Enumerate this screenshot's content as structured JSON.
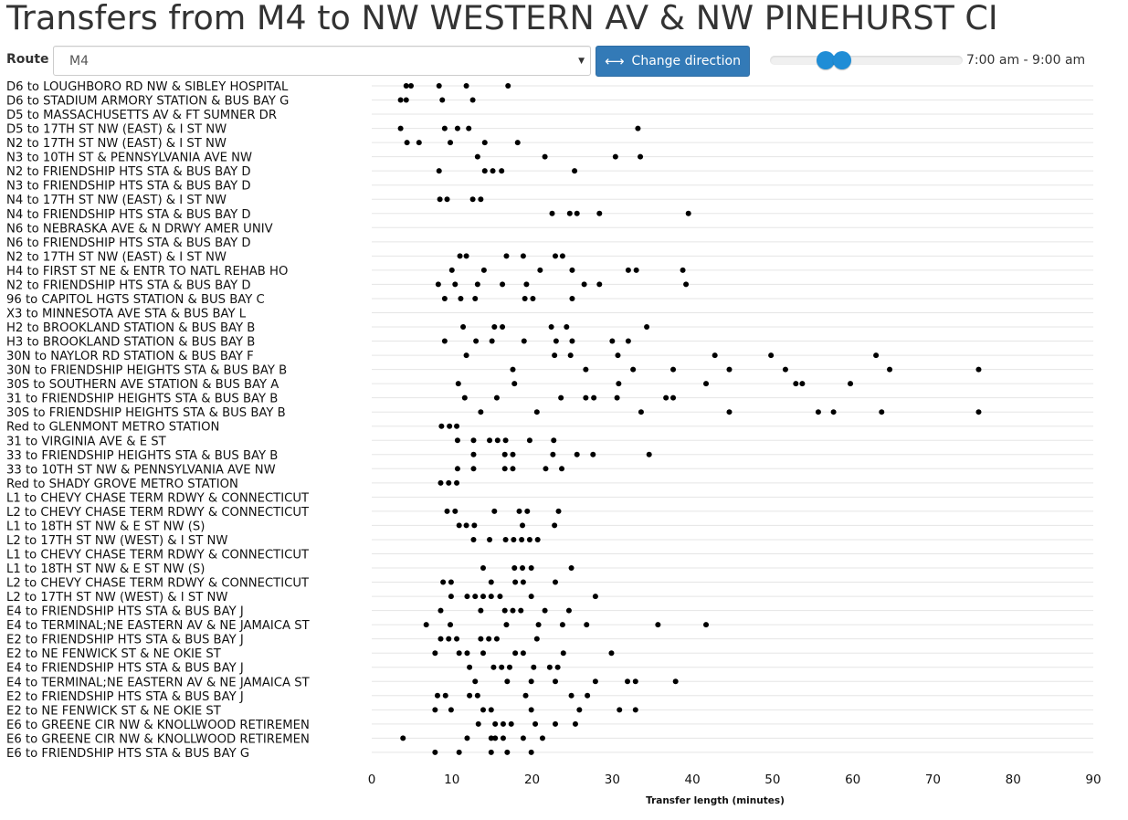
{
  "title": "Transfers from M4 to NW WESTERN AV & NW PINEHURST CI",
  "controls": {
    "route_label": "Route",
    "route_value": "M4",
    "change_direction_label": "Change direction",
    "time_range": "7:00 am - 9:00 am",
    "slider_low_fraction": 0.29,
    "slider_high_fraction": 0.375
  },
  "icons": {
    "caret": "caret-down-icon",
    "change_direction": "left-right-arrows-icon"
  },
  "colors": {
    "button": "#337ab7",
    "slider": "#1f8dd6",
    "point": "#000000",
    "gridline": "#e5e5e5"
  },
  "chart_data": {
    "type": "scatter",
    "title": "",
    "xlabel": "Transfer length (minutes)",
    "ylabel": "",
    "xlim": [
      0,
      90
    ],
    "xticks": [
      0,
      10,
      20,
      30,
      40,
      50,
      60,
      70,
      80,
      90
    ],
    "grid": "horizontal",
    "categories": [
      "D6 to LOUGHBORO RD NW & SIBLEY HOSPITAL",
      "D6 to STADIUM ARMORY STATION & BUS BAY G",
      "D5 to MASSACHUSETTS AV & FT SUMNER DR",
      "D5 to 17TH ST NW (EAST) & I ST NW",
      "N2 to 17TH ST NW (EAST) & I ST NW",
      "N3 to 10TH ST & PENNSYLVANIA AVE NW",
      "N2 to FRIENDSHIP HTS STA & BUS BAY D",
      "N3 to FRIENDSHIP HTS STA & BUS BAY D",
      "N4 to 17TH ST NW (EAST) & I ST NW",
      "N4 to FRIENDSHIP HTS STA & BUS BAY D",
      "N6 to NEBRASKA AVE & N DRWY AMER UNIV",
      "N6 to FRIENDSHIP HTS STA & BUS BAY D",
      "N2 to 17TH ST NW (EAST) & I ST NW",
      "H4 to FIRST ST NE & ENTR TO NATL REHAB HO",
      "N2 to FRIENDSHIP HTS STA & BUS BAY D",
      "96 to CAPITOL HGTS STATION & BUS BAY C",
      "X3 to MINNESOTA AVE STA & BUS BAY L",
      "H2 to BROOKLAND STATION & BUS BAY B",
      "H3 to BROOKLAND STATION & BUS BAY B",
      "30N to NAYLOR RD STATION & BUS BAY F",
      "30N to FRIENDSHIP HEIGHTS STA & BUS BAY B",
      "30S to SOUTHERN AVE STATION & BUS BAY A",
      "31 to FRIENDSHIP HEIGHTS STA & BUS BAY B",
      "30S to FRIENDSHIP HEIGHTS STA & BUS BAY B",
      "Red to GLENMONT METRO STATION",
      "31 to VIRGINIA AVE & E ST",
      "33 to FRIENDSHIP HEIGHTS STA & BUS BAY B",
      "33 to 10TH ST NW & PENNSYLVANIA AVE NW",
      "Red to SHADY GROVE METRO STATION",
      "L1 to CHEVY CHASE TERM RDWY & CONNECTICUT",
      "L2 to CHEVY CHASE TERM RDWY & CONNECTICUT",
      "L1 to 18TH ST NW & E ST NW (S)",
      "L2 to 17TH ST NW (WEST) & I ST NW",
      "L1 to CHEVY CHASE TERM RDWY & CONNECTICUT",
      "L1 to 18TH ST NW & E ST NW (S)",
      "L2 to CHEVY CHASE TERM RDWY & CONNECTICUT",
      "L2 to 17TH ST NW (WEST) & I ST NW",
      "E4 to FRIENDSHIP HTS STA & BUS BAY J",
      "E4 to TERMINAL;NE EASTERN AV & NE JAMAICA ST",
      "E2 to FRIENDSHIP HTS STA & BUS BAY J",
      "E2 to NE FENWICK ST & NE OKIE ST",
      "E4 to FRIENDSHIP HTS STA & BUS BAY J",
      "E4 to TERMINAL;NE EASTERN AV & NE JAMAICA ST",
      "E2 to FRIENDSHIP HTS STA & BUS BAY J",
      "E2 to NE FENWICK ST & NE OKIE ST",
      "E6 to GREENE CIR NW & KNOLLWOOD RETIREMEN",
      "E6 to GREENE CIR NW & KNOLLWOOD RETIREMEN",
      "E6 to FRIENDSHIP HTS STA & BUS BAY G"
    ],
    "values": [
      [
        4.3,
        4.9,
        8.4,
        11.8,
        17.0
      ],
      [
        3.6,
        4.3,
        8.8,
        12.6
      ],
      [],
      [
        3.6,
        9.1,
        10.7,
        12.1,
        33.2
      ],
      [
        4.4,
        5.9,
        9.8,
        14.1,
        18.2
      ],
      [
        13.2,
        21.6,
        30.4,
        33.5
      ],
      [
        8.4,
        14.1,
        15.1,
        16.2,
        25.3
      ],
      [],
      [
        8.5,
        9.4,
        12.6,
        13.6
      ],
      [
        22.5,
        24.7,
        25.6,
        28.4,
        39.5
      ],
      [],
      [],
      [
        11.0,
        11.8,
        16.8,
        18.9,
        22.9,
        23.8
      ],
      [
        10.0,
        14.0,
        21.0,
        25.0,
        32.0,
        33.0,
        38.8
      ],
      [
        8.3,
        10.4,
        13.2,
        16.3,
        19.3,
        26.5,
        28.4,
        39.2
      ],
      [
        9.1,
        11.1,
        12.9,
        19.1,
        20.1,
        25.0
      ],
      [],
      [
        11.4,
        15.3,
        16.3,
        22.4,
        24.3,
        34.3
      ],
      [
        9.1,
        13.0,
        15.0,
        19.0,
        23.0,
        25.0,
        30.0,
        32.0
      ],
      [
        11.8,
        22.8,
        24.8,
        30.7,
        42.8,
        49.8,
        62.9
      ],
      [
        17.6,
        26.7,
        32.6,
        37.6,
        44.6,
        51.6,
        64.6,
        75.7
      ],
      [
        10.8,
        17.8,
        30.8,
        41.7,
        52.9,
        53.7,
        59.7
      ],
      [
        11.6,
        15.6,
        23.6,
        26.7,
        27.7,
        30.6,
        36.7,
        37.6
      ],
      [
        13.6,
        20.6,
        33.6,
        44.6,
        55.7,
        57.6,
        63.6,
        75.7
      ],
      [
        8.7,
        9.7,
        10.6
      ],
      [
        10.7,
        12.7,
        14.7,
        15.7,
        16.7,
        19.7,
        22.7
      ],
      [
        12.7,
        16.6,
        17.6,
        22.6,
        25.6,
        27.6,
        34.6
      ],
      [
        10.7,
        12.7,
        16.6,
        17.6,
        21.7,
        23.7
      ],
      [
        8.6,
        9.6,
        10.6
      ],
      [],
      [
        9.4,
        10.4,
        15.3,
        18.4,
        19.4,
        23.3
      ],
      [
        10.9,
        11.8,
        12.8,
        18.8,
        22.8
      ],
      [
        12.7,
        14.7,
        16.7,
        17.7,
        18.7,
        19.7,
        20.7
      ],
      [],
      [
        13.9,
        17.8,
        18.8,
        19.9,
        24.9
      ],
      [
        8.9,
        9.9,
        14.9,
        17.9,
        18.9,
        22.9
      ],
      [
        9.9,
        11.9,
        12.9,
        13.9,
        14.9,
        16.0,
        19.9,
        27.9
      ],
      [
        8.6,
        13.6,
        16.6,
        17.6,
        18.6,
        21.6,
        24.6
      ],
      [
        6.8,
        9.8,
        16.8,
        20.8,
        23.8,
        26.8,
        35.7,
        41.7
      ],
      [
        8.6,
        9.6,
        10.6,
        13.6,
        14.6,
        15.6,
        20.6
      ],
      [
        7.9,
        10.9,
        11.9,
        13.9,
        17.9,
        18.9,
        23.9,
        29.9
      ],
      [
        12.2,
        15.2,
        16.2,
        17.2,
        20.2,
        22.2,
        23.2
      ],
      [
        12.9,
        16.9,
        19.9,
        22.9,
        27.9,
        31.9,
        32.9,
        37.9
      ],
      [
        8.2,
        9.2,
        12.2,
        13.2,
        19.2,
        24.9,
        26.9
      ],
      [
        7.9,
        9.9,
        13.9,
        14.9,
        19.9,
        25.9,
        30.9,
        32.9
      ],
      [
        13.3,
        15.4,
        16.4,
        17.4,
        20.4,
        22.9,
        25.4
      ],
      [
        3.9,
        11.9,
        14.9,
        15.4,
        16.4,
        18.9,
        21.3
      ],
      [
        7.9,
        10.9,
        14.9,
        16.9,
        19.9
      ]
    ]
  }
}
